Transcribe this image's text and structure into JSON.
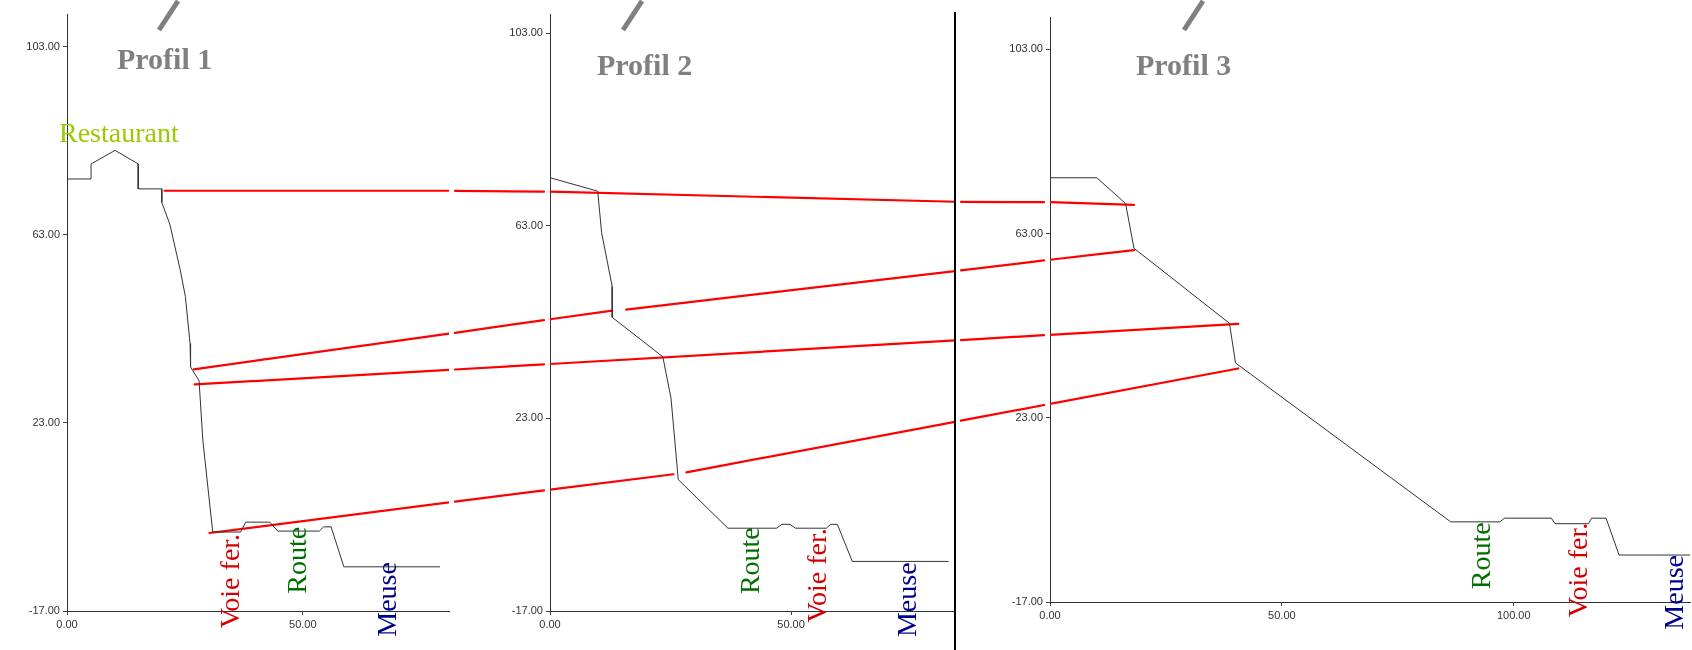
{
  "chart_data": [
    {
      "type": "line",
      "title": "Profil 1",
      "marker": "none",
      "xlim": [
        0,
        81
      ],
      "xticks": [
        {
          "value": 0,
          "label": "0.00"
        },
        {
          "value": 50,
          "label": "50.00"
        }
      ],
      "ylim": [
        -17,
        110
      ],
      "yticks": [
        {
          "value": -17,
          "label": "-17.00"
        },
        {
          "value": 23,
          "label": "23.00"
        },
        {
          "value": 63,
          "label": "63.00"
        },
        {
          "value": 103,
          "label": "103.00"
        }
      ],
      "annotations": [
        {
          "text": "Voie fer.",
          "x": 35,
          "y": -0.6
        },
        {
          "text": "Route",
          "x": 49.1,
          "y": 0.9
        },
        {
          "text": "Meuse",
          "x": 68.2,
          "y": -6.6
        },
        {
          "text": "Restaurant",
          "x": 11,
          "y": 81
        }
      ],
      "series": [
        {
          "color": "#333333",
          "x": [
            0,
            5.1,
            5.1,
            10.2,
            15.1,
            15.1,
            20.1,
            20.1,
            21.8,
            24,
            25.1,
            26.1,
            26.2,
            28,
            28.8,
            30.9,
            36.8,
            37.9,
            43,
            44.7,
            53.5,
            54.4,
            56,
            58.7,
            79
          ],
          "values": [
            74.9,
            74.9,
            78.1,
            81,
            78.1,
            72.8,
            72.8,
            69.9,
            65.3,
            55.6,
            49.9,
            39.9,
            34.9,
            32,
            19.4,
            -0.2,
            -0.2,
            1.9,
            1.9,
            0,
            0,
            0.9,
            0.9,
            -7.6,
            -7.6
          ]
        },
        {
          "color": "#ff0000",
          "x": [
            20.7,
            81
          ],
          "values": [
            72.4,
            72.4
          ]
        },
        {
          "color": "#ff0000",
          "x": [
            26.9,
            81
          ],
          "values": [
            34.4,
            42.0
          ]
        },
        {
          "color": "#ff0000",
          "x": [
            27.1,
            81
          ],
          "values": [
            31.2,
            34.3
          ]
        },
        {
          "color": "#ff0000",
          "x": [
            30.2,
            81
          ],
          "values": [
            -0.4,
            6.1
          ]
        }
      ]
    },
    {
      "type": "line",
      "title": "Profil 2",
      "marker": "none",
      "xlim": [
        0,
        84
      ],
      "xticks": [
        {
          "value": 0,
          "label": "0.00"
        },
        {
          "value": 50,
          "label": "50.00"
        }
      ],
      "ylim": [
        -17,
        107
      ],
      "yticks": [
        {
          "value": -17,
          "label": "-17.00"
        },
        {
          "value": 23,
          "label": "23.00"
        },
        {
          "value": 63,
          "label": "63.00"
        },
        {
          "value": 103,
          "label": "103.00"
        }
      ],
      "annotations": [
        {
          "text": "Voie fer.",
          "x": 55.8,
          "y": 0.2
        },
        {
          "text": "Route",
          "x": 41.8,
          "y": 0.4
        },
        {
          "text": "Meuse",
          "x": 74.3,
          "y": -6.9
        }
      ],
      "series": [
        {
          "color": "#333333",
          "x": [
            0,
            9.9,
            10.7,
            12.9,
            12.9,
            23.4,
            25.1,
            26.6,
            36.9,
            47,
            48.1,
            49.8,
            50.9,
            57.3,
            58.2,
            59.6,
            62.7,
            82.6
          ],
          "values": [
            73,
            70.2,
            61.6,
            50.4,
            44,
            35.8,
            27.2,
            10.3,
            0.2,
            0.2,
            1,
            1,
            0.2,
            0.2,
            1,
            1,
            -6.7,
            -6.7
          ]
        },
        {
          "color": "#ff0000",
          "x": [
            0,
            84
          ],
          "values": [
            70.1,
            68.0
          ]
        },
        {
          "color": "#ff0000",
          "x": [
            0,
            12.9,
            14.3,
            15.8,
            84
          ],
          "values": [
            43.6,
            45.4,
            null,
            45.6,
            53.6
          ]
        },
        {
          "color": "#ff0000",
          "x": [
            0,
            84
          ],
          "values": [
            34.3,
            39.2
          ]
        },
        {
          "color": "#ff0000",
          "x": [
            0,
            25.6,
            27,
            28.3,
            84
          ],
          "values": [
            8.2,
            11.4,
            null,
            11.8,
            22.3
          ]
        }
      ]
    },
    {
      "type": "line",
      "title": "Profil 3",
      "marker": "none",
      "xlim": [
        0,
        138
      ],
      "xticks": [
        {
          "value": 0,
          "label": "0.00"
        },
        {
          "value": 50,
          "label": "50.00"
        },
        {
          "value": 100,
          "label": "100.00"
        }
      ],
      "ylim": [
        -17,
        110
      ],
      "yticks": [
        {
          "value": -17,
          "label": "-17.00"
        },
        {
          "value": 23,
          "label": "23.00"
        },
        {
          "value": 63,
          "label": "63.00"
        },
        {
          "value": 103,
          "label": "103.00"
        }
      ],
      "annotations": [
        {
          "text": "Voie fer.",
          "x": 114.1,
          "y": 0.2
        },
        {
          "text": "Route",
          "x": 93.2,
          "y": 0.3
        },
        {
          "text": "Meuse",
          "x": 134.8,
          "y": -6.8
        }
      ],
      "series": [
        {
          "color": "#333333",
          "x": [
            0,
            10.1,
            16.3,
            18.1,
            38.7,
            40,
            86.4,
            97,
            98,
            108.1,
            108.9,
            116.1,
            116.8,
            119.9,
            122.7,
            138
          ],
          "values": [
            75.1,
            75.1,
            69.5,
            59.8,
            43.5,
            34.9,
            0.4,
            0.4,
            1.2,
            1.2,
            0,
            0,
            1.2,
            1.2,
            -6.8,
            -6.8
          ]
        },
        {
          "color": "#ff0000",
          "x": [
            0,
            18.1
          ],
          "values": [
            69.8,
            69.2
          ]
        },
        {
          "color": "#ff0000",
          "x": [
            0,
            18.1
          ],
          "values": [
            57.3,
            59.4
          ]
        },
        {
          "color": "#ff0000",
          "x": [
            0,
            40.6
          ],
          "values": [
            41.0,
            43.4
          ]
        },
        {
          "color": "#ff0000",
          "x": [
            0,
            40.6
          ],
          "values": [
            26.0,
            33.7
          ]
        }
      ]
    }
  ]
}
